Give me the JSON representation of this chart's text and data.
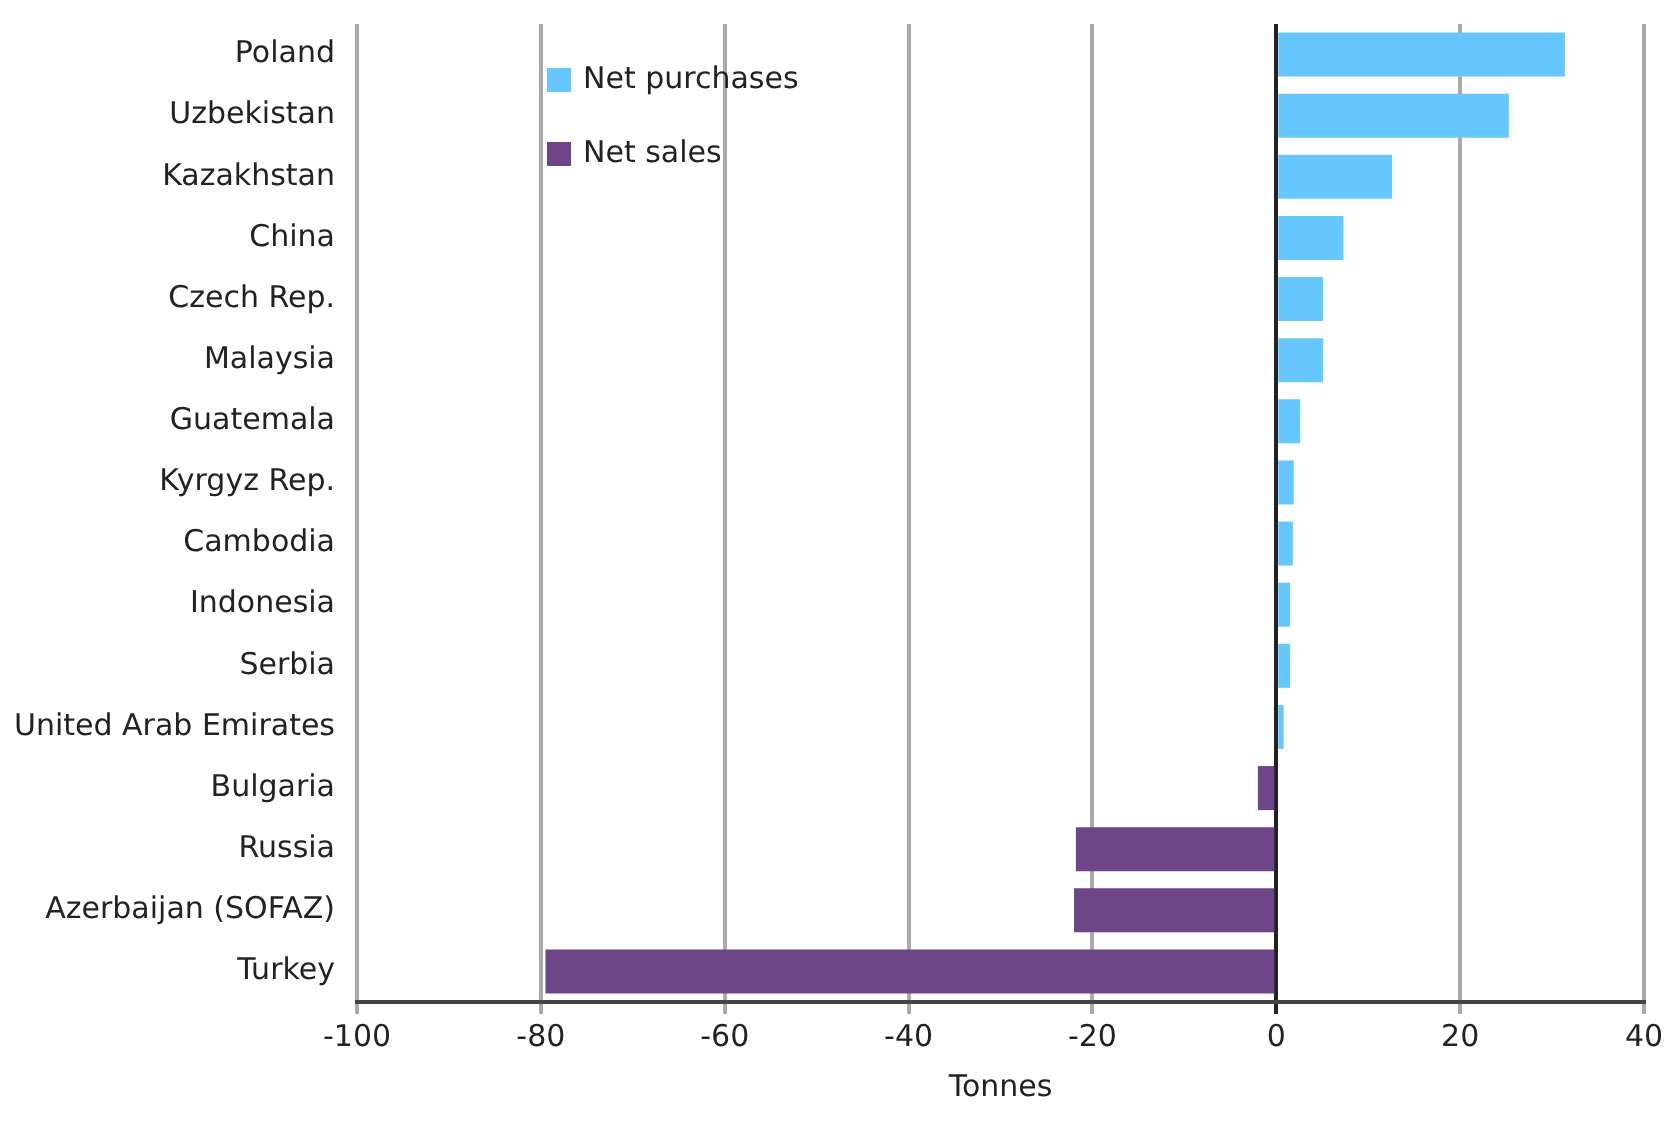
{
  "chart_data": {
    "type": "bar",
    "orientation": "horizontal",
    "stacked": true,
    "categories": [
      "Poland",
      "Uzbekistan",
      "Kazakhstan",
      "China",
      "Czech Rep.",
      "Malaysia",
      "Guatemala",
      "Kyrgyz Rep.",
      "Cambodia",
      "Indonesia",
      "Serbia",
      "United Arab Emirates",
      "Bulgaria",
      "Russia",
      "Azerbaijan (SOFAZ)",
      "Turkey"
    ],
    "series": [
      {
        "name": "Net purchases",
        "color": "#66c7ff",
        "values": [
          31.4,
          25.3,
          12.6,
          7.3,
          5.1,
          5.1,
          2.6,
          1.9,
          1.8,
          1.5,
          1.5,
          0.8,
          null,
          null,
          null,
          null
        ]
      },
      {
        "name": "Net sales",
        "color": "#6e4587",
        "values": [
          null,
          null,
          null,
          null,
          null,
          null,
          null,
          null,
          null,
          null,
          null,
          null,
          -2.0,
          -21.8,
          -22.0,
          -79.5
        ]
      }
    ],
    "xlabel": "Tonnes",
    "xlim": [
      -100,
      40
    ],
    "xticks": [
      -100,
      -80,
      -60,
      -40,
      -20,
      0,
      20,
      40
    ],
    "grid": "x",
    "legend": "top left"
  }
}
